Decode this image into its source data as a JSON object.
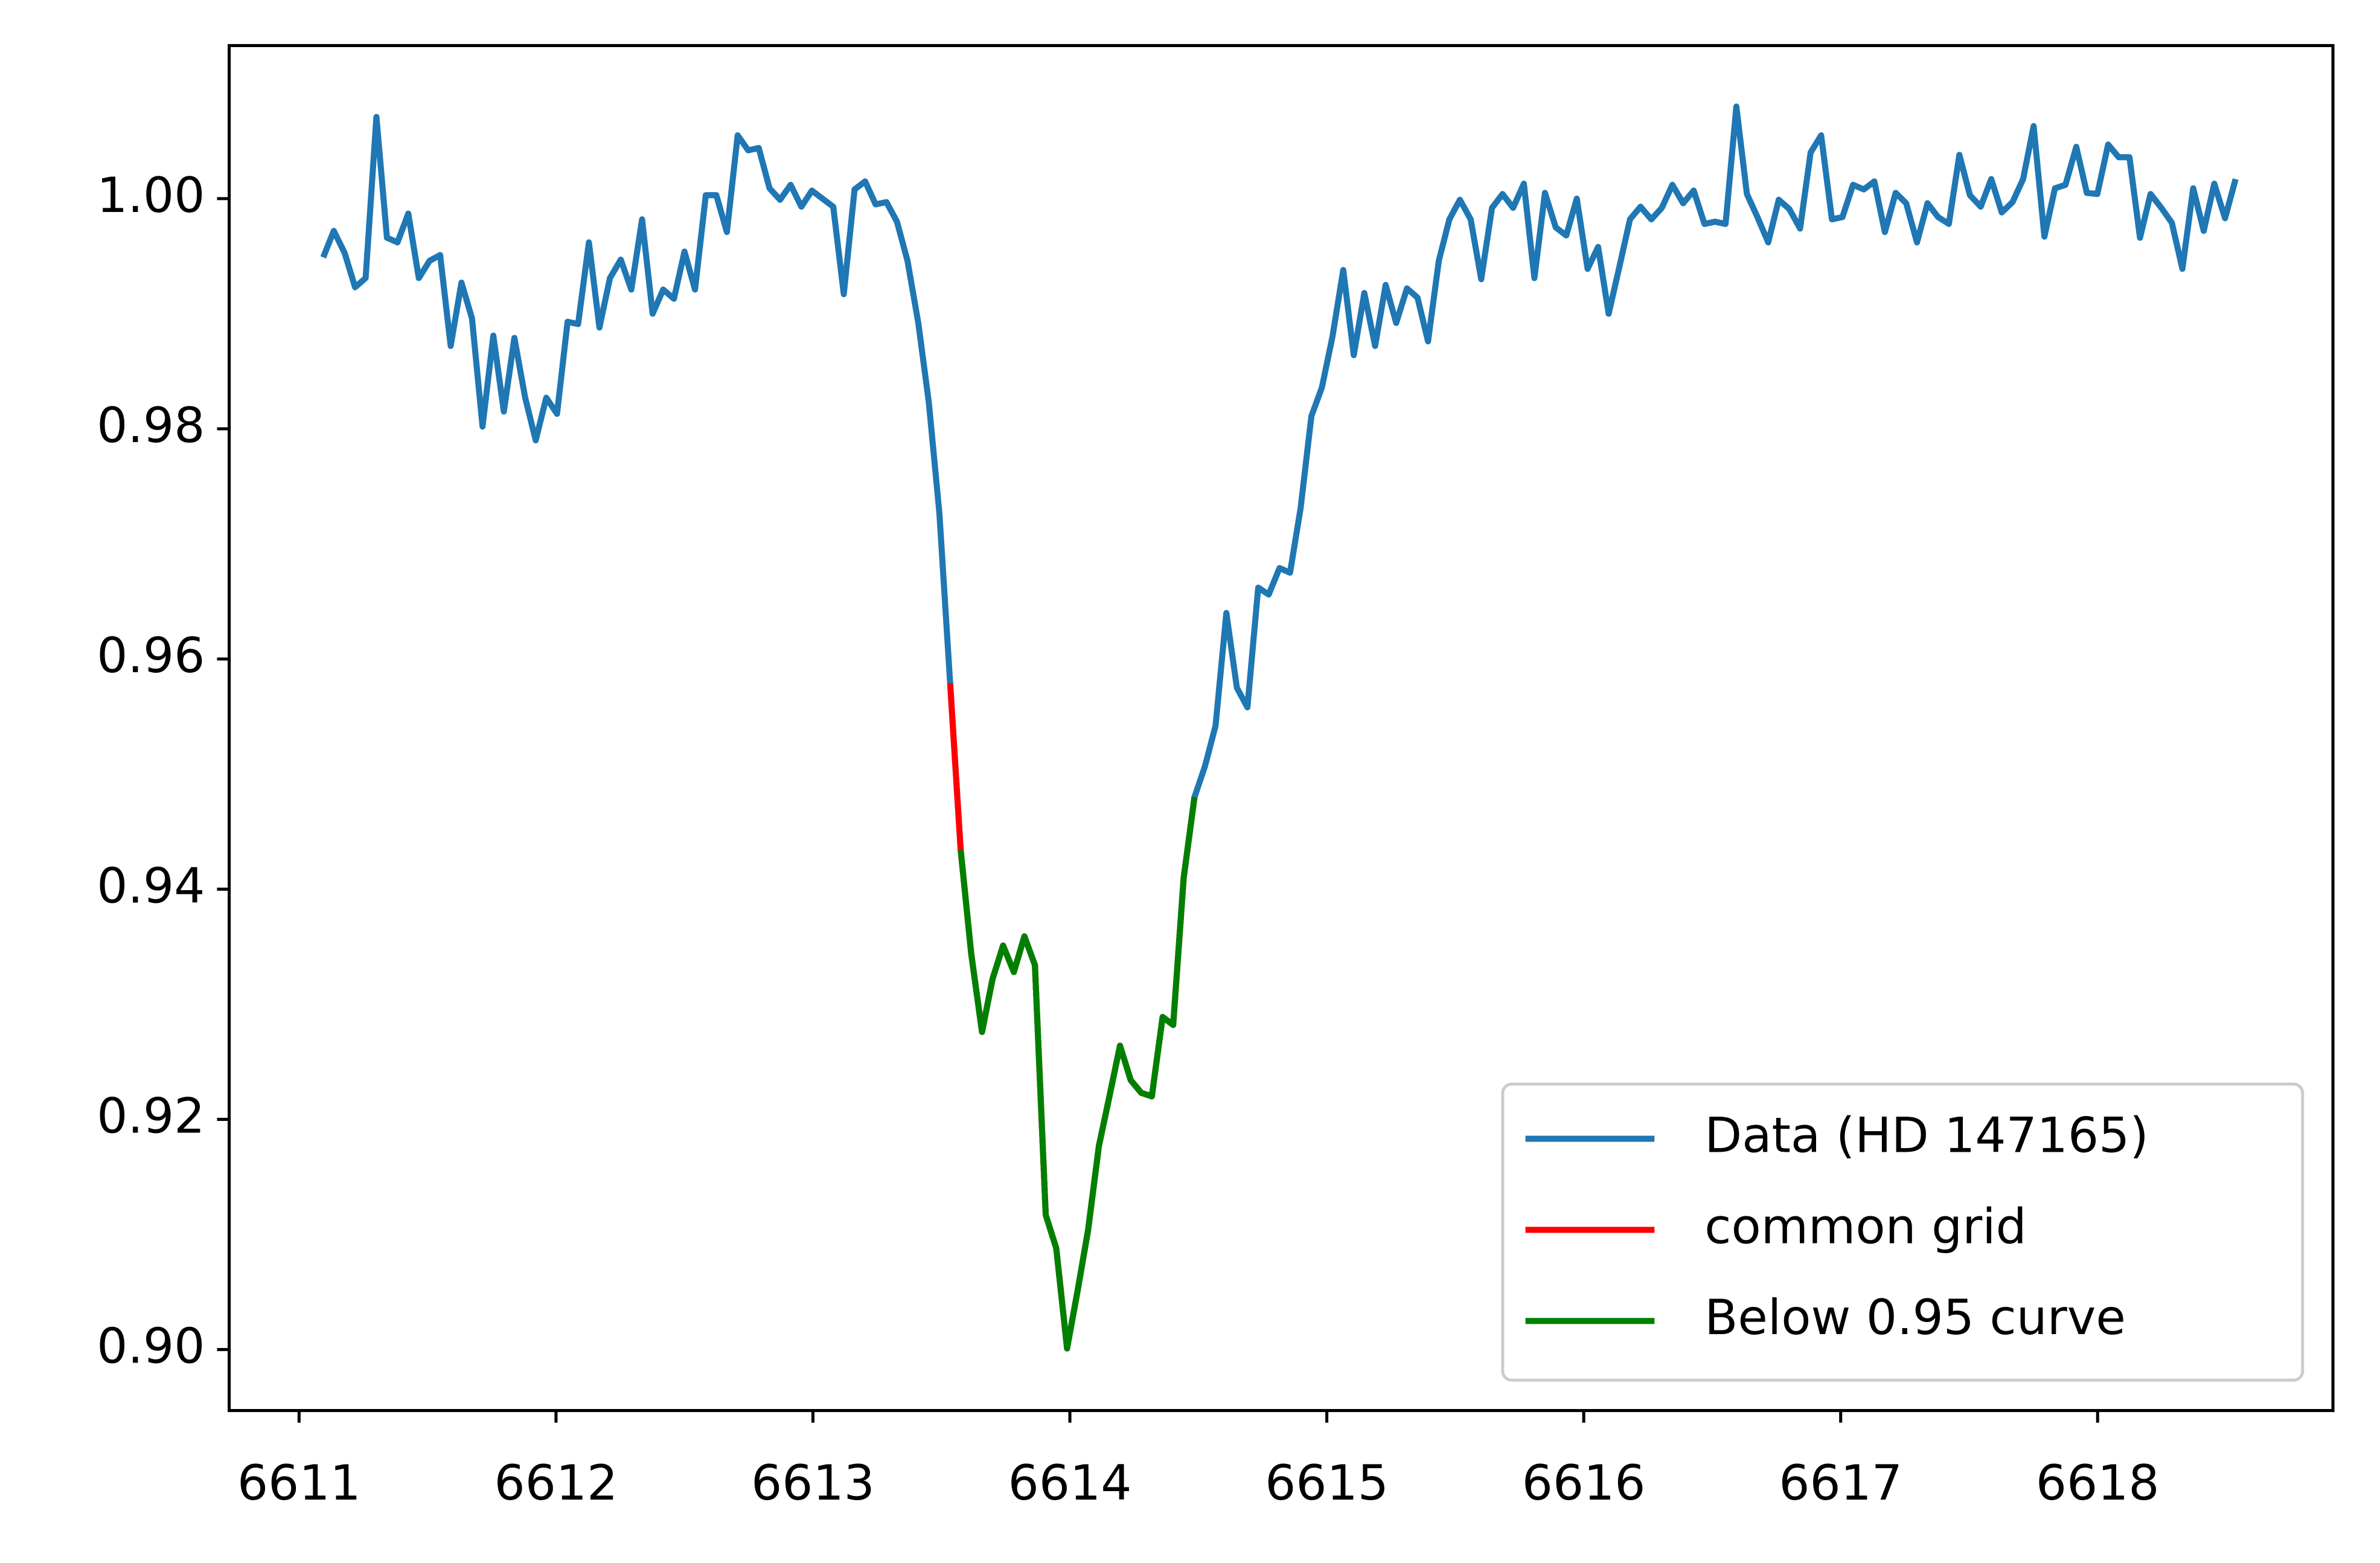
{
  "chart_data": {
    "type": "line",
    "x_step_note_free": null,
    "xlim": [
      6610.728,
      6618.916
    ],
    "ylim": [
      0.8947,
      1.0133
    ],
    "xticks": [
      6611,
      6612,
      6613,
      6614,
      6615,
      6616,
      6617,
      6618
    ],
    "yticks": [
      {
        "value": 0.9,
        "label": "0.90"
      },
      0.92,
      0.94,
      0.96,
      0.98,
      {
        "value": 1.0,
        "label": "1.00"
      }
    ],
    "legend": "lower right",
    "series": [
      {
        "name": "Data (HD 147165)",
        "color": "#1f77b4",
        "x": [
          6611.094,
          6611.135,
          6611.177,
          6611.218,
          6611.259,
          6611.301,
          6611.342,
          6611.383,
          6611.425,
          6611.466,
          6611.508,
          6611.549,
          6611.59,
          6611.632,
          6611.673,
          6611.714,
          6611.756,
          6611.797,
          6611.838,
          6611.88,
          6611.921,
          6611.962,
          6612.004,
          6612.045,
          6612.086,
          6612.128,
          6612.169,
          6612.21,
          6612.252,
          6612.293,
          6612.335,
          6612.376,
          6612.417,
          6612.459,
          6612.5,
          6612.541,
          6612.583,
          6612.624,
          6612.665,
          6612.707,
          6612.748,
          6612.789,
          6612.831,
          6612.872,
          6612.913,
          6612.955,
          6612.996,
          6613.037,
          6613.079,
          6613.12,
          6613.162,
          6613.203,
          6613.244,
          6613.286,
          6613.327,
          6613.368,
          6613.41,
          6613.451,
          6613.492,
          6613.534,
          6613.575,
          6613.616,
          6613.658,
          6613.699,
          6613.74,
          6613.782,
          6613.823,
          6613.864,
          6613.906,
          6613.947,
          6613.989,
          6614.03,
          6614.071,
          6614.113,
          6614.154,
          6614.195,
          6614.237,
          6614.278,
          6614.319,
          6614.361,
          6614.402,
          6614.443,
          6614.485,
          6614.526,
          6614.567,
          6614.609,
          6614.65,
          6614.691,
          6614.733,
          6614.774,
          6614.816,
          6614.857,
          6614.898,
          6614.94,
          6614.981,
          6615.022,
          6615.064,
          6615.105,
          6615.146,
          6615.188,
          6615.229,
          6615.27,
          6615.312,
          6615.353,
          6615.394,
          6615.436,
          6615.477,
          6615.518,
          6615.56,
          6615.601,
          6615.643,
          6615.684,
          6615.725,
          6615.767,
          6615.808,
          6615.849,
          6615.891,
          6615.932,
          6615.973,
          6616.015,
          6616.056,
          6616.097,
          6616.139,
          6616.18,
          6616.221,
          6616.263,
          6616.304,
          6616.345,
          6616.387,
          6616.428,
          6616.47,
          6616.511,
          6616.552,
          6616.594,
          6616.635,
          6616.676,
          6616.718,
          6616.759,
          6616.8,
          6616.842,
          6616.883,
          6616.924,
          6616.966,
          6617.007,
          6617.048,
          6617.09,
          6617.131,
          6617.172,
          6617.214,
          6617.255,
          6617.297,
          6617.338,
          6617.379,
          6617.421,
          6617.462,
          6617.503,
          6617.545,
          6617.586,
          6617.627,
          6617.669,
          6617.71,
          6617.751,
          6617.793,
          6617.834,
          6617.875,
          6617.917,
          6617.958,
          6617.999,
          6618.041,
          6618.082,
          6618.124,
          6618.165,
          6618.206,
          6618.248,
          6618.289,
          6618.33,
          6618.372,
          6618.413,
          6618.454,
          6618.496,
          6618.537
        ],
        "values": [
          0.9949,
          0.9972,
          0.9953,
          0.9923,
          0.9931,
          1.0071,
          0.9966,
          0.9962,
          0.9987,
          0.9931,
          0.9946,
          0.9951,
          0.9872,
          0.9927,
          0.9896,
          0.9802,
          0.9881,
          0.9815,
          0.9879,
          0.9827,
          0.979,
          0.9827,
          0.9813,
          0.9893,
          0.9891,
          0.9962,
          0.9888,
          0.9931,
          0.9947,
          0.9921,
          0.9982,
          0.99,
          0.9921,
          0.9913,
          0.9954,
          0.9921,
          1.0003,
          1.0003,
          0.9971,
          1.0055,
          1.0042,
          1.0044,
          1.0009,
          0.9999,
          1.0012,
          0.9993,
          1.0007,
          1.0,
          0.9993,
          0.9917,
          1.0008,
          1.0015,
          0.9995,
          0.9997,
          0.998,
          0.9946,
          0.9892,
          0.9823,
          0.9727,
          0.9579,
          0.9434,
          0.9344,
          0.9276,
          0.9322,
          0.9351,
          0.9328,
          0.9359,
          0.9334,
          0.9117,
          0.9088,
          0.9001,
          0.9051,
          0.9104,
          0.9177,
          0.922,
          0.9264,
          0.9234,
          0.9223,
          0.922,
          0.9289,
          0.9282,
          0.941,
          0.948,
          0.9507,
          0.9542,
          0.964,
          0.9575,
          0.9558,
          0.9662,
          0.9656,
          0.9679,
          0.9675,
          0.9731,
          0.9811,
          0.9836,
          0.988,
          0.9938,
          0.9864,
          0.9918,
          0.9872,
          0.9925,
          0.9892,
          0.9922,
          0.9914,
          0.9876,
          0.9946,
          0.9982,
          0.9999,
          0.9982,
          0.993,
          0.9992,
          1.0004,
          0.9992,
          1.0013,
          0.9931,
          1.0005,
          0.9975,
          0.9968,
          1.0,
          0.9939,
          0.9958,
          0.99,
          0.9941,
          0.9982,
          0.9993,
          0.9982,
          0.9992,
          1.0012,
          0.9996,
          1.0007,
          0.9978,
          0.998,
          0.9978,
          1.008,
          1.0004,
          0.9984,
          0.9962,
          0.9999,
          0.9991,
          0.9974,
          1.004,
          1.0055,
          0.9982,
          0.9984,
          1.0012,
          1.0008,
          1.0015,
          0.9971,
          1.0005,
          0.9996,
          0.9962,
          0.9996,
          0.9984,
          0.9978,
          1.0038,
          1.0003,
          0.9993,
          1.0017,
          0.9988,
          0.9997,
          1.0017,
          1.0063,
          0.9967,
          1.0009,
          1.0012,
          1.0045,
          1.0005,
          1.0004,
          1.0047,
          1.0036,
          1.0036,
          0.9966,
          1.0004,
          0.9992,
          0.9979,
          0.9939,
          1.0009,
          0.9972,
          1.0013,
          0.9983,
          1.0017
        ]
      },
      {
        "name": "common grid",
        "color": "#ff0000",
        "x": [
          6613.534,
          6613.575,
          6613.616,
          6613.658,
          6613.699,
          6613.74,
          6613.782,
          6613.823,
          6613.864,
          6613.906,
          6613.947,
          6613.989,
          6614.03,
          6614.071,
          6614.113,
          6614.154,
          6614.195,
          6614.237,
          6614.278,
          6614.319,
          6614.361,
          6614.402,
          6614.443,
          6614.485
        ],
        "values": [
          0.9579,
          0.9434,
          0.9344,
          0.9276,
          0.9322,
          0.9351,
          0.9328,
          0.9359,
          0.9334,
          0.9117,
          0.9088,
          0.9001,
          0.9051,
          0.9104,
          0.9177,
          0.922,
          0.9264,
          0.9234,
          0.9223,
          0.922,
          0.9289,
          0.9282,
          0.941,
          0.948
        ]
      },
      {
        "name": "Below 0.95 curve",
        "color": "#008000",
        "x": [
          6613.575,
          6613.616,
          6613.658,
          6613.699,
          6613.74,
          6613.782,
          6613.823,
          6613.864,
          6613.906,
          6613.947,
          6613.989,
          6614.03,
          6614.071,
          6614.113,
          6614.154,
          6614.195,
          6614.237,
          6614.278,
          6614.319,
          6614.361,
          6614.402,
          6614.443,
          6614.485
        ],
        "values": [
          0.9434,
          0.9344,
          0.9276,
          0.9322,
          0.9351,
          0.9328,
          0.9359,
          0.9334,
          0.9117,
          0.9088,
          0.9001,
          0.9051,
          0.9104,
          0.9177,
          0.922,
          0.9264,
          0.9234,
          0.9223,
          0.922,
          0.9289,
          0.9282,
          0.941,
          0.948
        ]
      }
    ]
  }
}
